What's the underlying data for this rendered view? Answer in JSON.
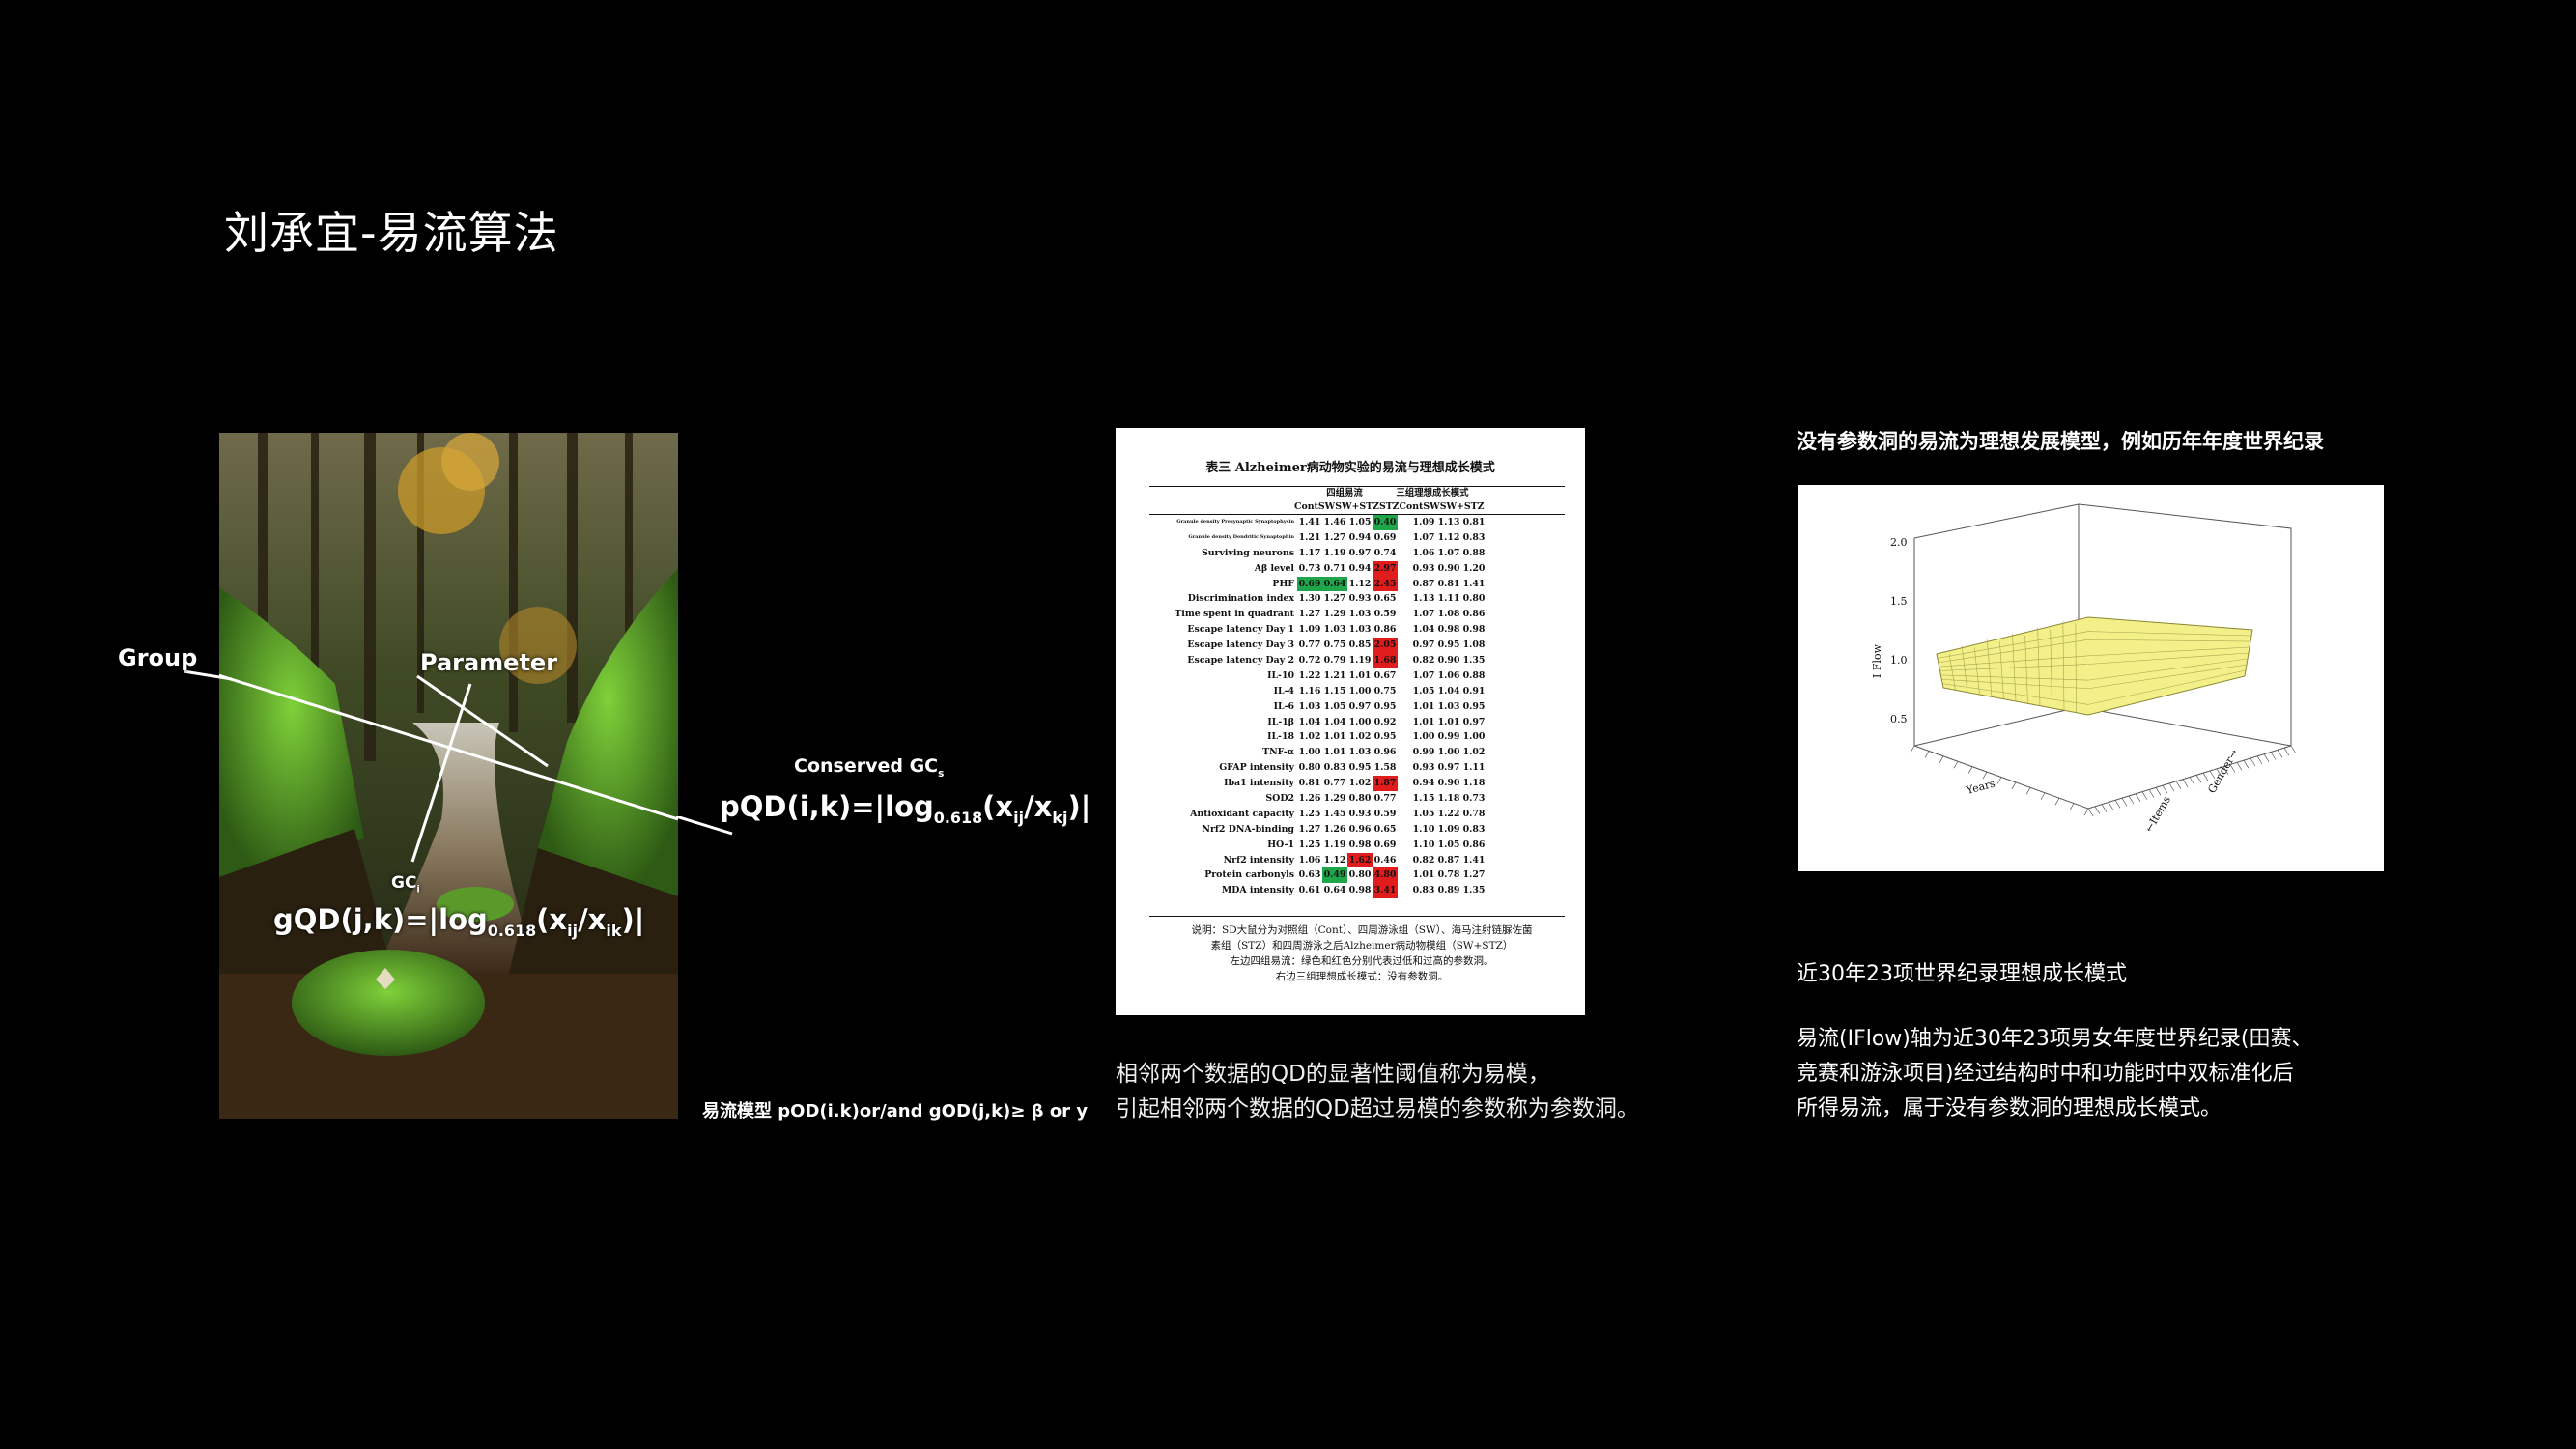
{
  "title": "刘承宜-易流算法",
  "photo": {
    "labels": {
      "group": "Group",
      "parameter": "Parameter",
      "conserved_gc": "Conserved GC",
      "conserved_gc_sub": "s",
      "pqd_main": "pQD(i,k)=|log",
      "pqd_base": "0.618",
      "pqd_open": "(x",
      "pqd_ij": "ij",
      "pqd_mid": "/x",
      "pqd_kj": "kj",
      "pqd_close": ")|",
      "gci": "GC",
      "gci_sub": "i",
      "gqd_main": "gQD(j,k)=|log",
      "gqd_base": "0.618",
      "gqd_open": "(x",
      "gqd_ij": "ij",
      "gqd_mid": "/x",
      "gqd_ik": "ik",
      "gqd_close": ")|"
    },
    "model_text": "易流模型  pOD(i.k)or/and gOD(j,k)≥ β or y"
  },
  "table_image": {
    "caption": "表三 Alzheimer病动物实验的易流与理想成长模式",
    "group_header_left": "四组易流",
    "group_header_right": "三组理想成长模式",
    "columns": [
      "Cont",
      "SW",
      "SW+STZ",
      "STZ",
      "Cont",
      "SW",
      "SW+STZ"
    ],
    "rows": [
      {
        "label": "Granule density Presynaptic Synaptophysin",
        "values": [
          "1.41",
          "1.46",
          "1.05",
          "0.40",
          "1.09",
          "1.13",
          "0.81"
        ],
        "hl": {
          "3": "g"
        }
      },
      {
        "label": "Granule density Dendritic Synaptophin",
        "values": [
          "1.21",
          "1.27",
          "0.94",
          "0.69",
          "1.07",
          "1.12",
          "0.83"
        ],
        "hl": {}
      },
      {
        "label": "Surviving neurons",
        "values": [
          "1.17",
          "1.19",
          "0.97",
          "0.74",
          "1.06",
          "1.07",
          "0.88"
        ],
        "hl": {}
      },
      {
        "label": "Aβ level",
        "values": [
          "0.73",
          "0.71",
          "0.94",
          "2.97",
          "0.93",
          "0.90",
          "1.20"
        ],
        "hl": {
          "3": "r"
        }
      },
      {
        "label": "PHF",
        "values": [
          "0.69",
          "0.64",
          "1.12",
          "2.45",
          "0.87",
          "0.81",
          "1.41"
        ],
        "hl": {
          "0": "g",
          "1": "g",
          "3": "r"
        }
      },
      {
        "label": "Discrimination index",
        "values": [
          "1.30",
          "1.27",
          "0.93",
          "0.65",
          "1.13",
          "1.11",
          "0.80"
        ],
        "hl": {}
      },
      {
        "label": "Time spent in quadrant",
        "values": [
          "1.27",
          "1.29",
          "1.03",
          "0.59",
          "1.07",
          "1.08",
          "0.86"
        ],
        "hl": {}
      },
      {
        "label": "Escape latency Day 1",
        "values": [
          "1.09",
          "1.03",
          "1.03",
          "0.86",
          "1.04",
          "0.98",
          "0.98"
        ],
        "hl": {}
      },
      {
        "label": "Escape latency Day 3",
        "values": [
          "0.77",
          "0.75",
          "0.85",
          "2.05",
          "0.97",
          "0.95",
          "1.08"
        ],
        "hl": {
          "3": "r"
        }
      },
      {
        "label": "Escape latency Day 2",
        "values": [
          "0.72",
          "0.79",
          "1.19",
          "1.68",
          "0.82",
          "0.90",
          "1.35"
        ],
        "hl": {
          "3": "r"
        }
      },
      {
        "label": "IL-10",
        "values": [
          "1.22",
          "1.21",
          "1.01",
          "0.67",
          "1.07",
          "1.06",
          "0.88"
        ],
        "hl": {}
      },
      {
        "label": "IL-4",
        "values": [
          "1.16",
          "1.15",
          "1.00",
          "0.75",
          "1.05",
          "1.04",
          "0.91"
        ],
        "hl": {}
      },
      {
        "label": "IL-6",
        "values": [
          "1.03",
          "1.05",
          "0.97",
          "0.95",
          "1.01",
          "1.03",
          "0.95"
        ],
        "hl": {}
      },
      {
        "label": "IL-1β",
        "values": [
          "1.04",
          "1.04",
          "1.00",
          "0.92",
          "1.01",
          "1.01",
          "0.97"
        ],
        "hl": {}
      },
      {
        "label": "IL-18",
        "values": [
          "1.02",
          "1.01",
          "1.02",
          "0.95",
          "1.00",
          "0.99",
          "1.00"
        ],
        "hl": {}
      },
      {
        "label": "TNF-α",
        "values": [
          "1.00",
          "1.01",
          "1.03",
          "0.96",
          "0.99",
          "1.00",
          "1.02"
        ],
        "hl": {}
      },
      {
        "label": "GFAP intensity",
        "values": [
          "0.80",
          "0.83",
          "0.95",
          "1.58",
          "0.93",
          "0.97",
          "1.11"
        ],
        "hl": {}
      },
      {
        "label": "Iba1 intensity",
        "values": [
          "0.81",
          "0.77",
          "1.02",
          "1.87",
          "0.94",
          "0.90",
          "1.18"
        ],
        "hl": {
          "3": "r"
        }
      },
      {
        "label": "SOD2",
        "values": [
          "1.26",
          "1.29",
          "0.80",
          "0.77",
          "1.15",
          "1.18",
          "0.73"
        ],
        "hl": {}
      },
      {
        "label": "Antioxidant capacity",
        "values": [
          "1.25",
          "1.45",
          "0.93",
          "0.59",
          "1.05",
          "1.22",
          "0.78"
        ],
        "hl": {}
      },
      {
        "label": "Nrf2 DNA-binding",
        "values": [
          "1.27",
          "1.26",
          "0.96",
          "0.65",
          "1.10",
          "1.09",
          "0.83"
        ],
        "hl": {}
      },
      {
        "label": "HO-1",
        "values": [
          "1.25",
          "1.19",
          "0.98",
          "0.69",
          "1.10",
          "1.05",
          "0.86"
        ],
        "hl": {}
      },
      {
        "label": "Nrf2 intensity",
        "values": [
          "1.06",
          "1.12",
          "1.62",
          "0.46",
          "0.82",
          "0.87",
          "1.41"
        ],
        "hl": {
          "2": "r"
        }
      },
      {
        "label": "Protein carbonyls",
        "values": [
          "0.63",
          "0.49",
          "0.80",
          "4.80",
          "1.01",
          "0.78",
          "1.27"
        ],
        "hl": {
          "1": "g",
          "3": "r"
        }
      },
      {
        "label": "MDA intensity",
        "values": [
          "0.61",
          "0.64",
          "0.98",
          "3.41",
          "0.83",
          "0.89",
          "1.35"
        ],
        "hl": {
          "3": "r"
        }
      }
    ],
    "note_lines": [
      "说明：SD大鼠分为对照组（Cont）、四周游泳组（SW）、海马注射链脲佐菌",
      "素组（STZ）和四周游泳之后Alzheimer病动物模组（SW+STZ）",
      "左边四组易流：绿色和红色分别代表过低和过高的参数洞。",
      "右边三组理想成长模式：没有参数洞。"
    ]
  },
  "middle_desc": {
    "line1": "相邻两个数据的QD的显著性阈值称为易模，",
    "line2": "引起相邻两个数据的QD超过易模的参数称为参数洞。"
  },
  "right": {
    "heading": "没有参数洞的易流为理想发展模型，例如历年年度世界纪录",
    "chart": {
      "ylabel": "I Flow",
      "zticks": [
        "2.0",
        "1.5",
        "1.0",
        "0.5"
      ],
      "xlabel": "Years",
      "ylabel2": "←Items",
      "zlabel": "Gender→"
    },
    "subtitle": "近30年23项世界纪录理想成长模式",
    "desc_line1": "易流(IFlow)轴为近30年23项男女年度世界纪录(田赛、",
    "desc_line2": "竞赛和游泳项目)经过结构时中和功能时中双标准化后",
    "desc_line3": "所得易流，属于没有参数洞的理想成长模式。"
  },
  "colors": {
    "background": "#000000",
    "text": "#ffffff",
    "surface": "#f3f08a",
    "hl_green": "#1fa64a",
    "hl_red": "#e01c1c"
  }
}
